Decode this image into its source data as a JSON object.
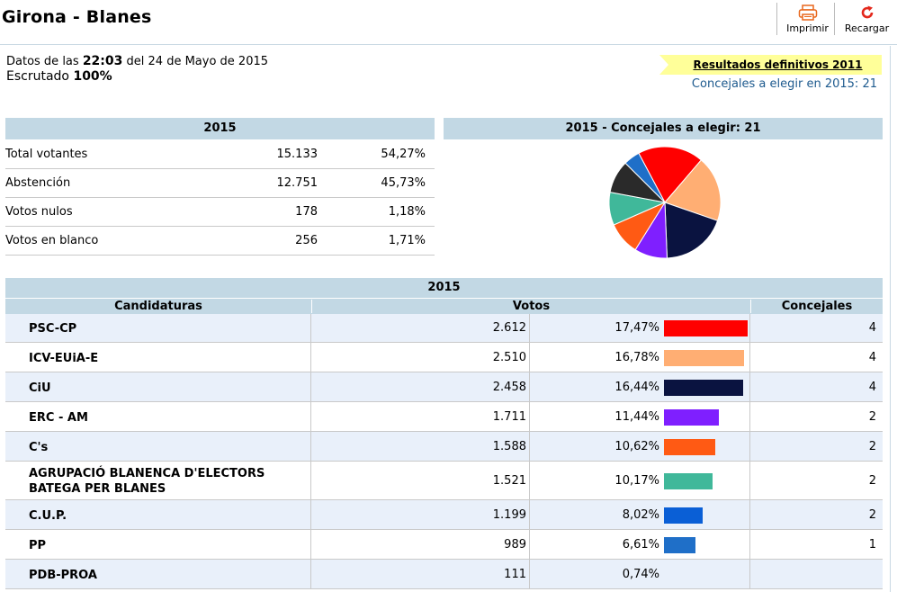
{
  "header": {
    "title": "Girona - Blanes",
    "print_label": "Imprimir",
    "reload_label": "Recargar"
  },
  "info": {
    "datos_prefix": "Datos de las",
    "time": "22:03",
    "date_text": "del 24 de Mayo de 2015",
    "escrutado_label": "Escrutado",
    "escrutado_value": "100%"
  },
  "links": {
    "previous_results": "Resultados definitivos 2011",
    "concejales_note": "Concejales a elegir en 2015: 21"
  },
  "summary": {
    "header": "2015",
    "rows": [
      {
        "label": "Total votantes",
        "value": "15.133",
        "pct": "54,27%"
      },
      {
        "label": "Abstención",
        "value": "12.751",
        "pct": "45,73%"
      },
      {
        "label": "Votos nulos",
        "value": "178",
        "pct": "1,18%"
      },
      {
        "label": "Votos en blanco",
        "value": "256",
        "pct": "1,71%"
      }
    ]
  },
  "pie": {
    "header": "2015 - Concejales a elegir: 21",
    "colors": {
      "white_gap": "#ffffff"
    }
  },
  "results": {
    "header": "2015",
    "columns": [
      "Candidaturas",
      "Votos",
      "Concejales"
    ],
    "rows": [
      {
        "name": "PSC-CP",
        "votes": "2.612",
        "pct": "17,47%",
        "pct_value": 17.47,
        "seats": "4",
        "color": "#ff0000"
      },
      {
        "name": "ICV-EUiA-E",
        "votes": "2.510",
        "pct": "16,78%",
        "pct_value": 16.78,
        "seats": "4",
        "color": "#ffae73"
      },
      {
        "name": "CiU",
        "votes": "2.458",
        "pct": "16,44%",
        "pct_value": 16.44,
        "seats": "4",
        "color": "#0a1340"
      },
      {
        "name": "ERC - AM",
        "votes": "1.711",
        "pct": "11,44%",
        "pct_value": 11.44,
        "seats": "2",
        "color": "#7f1fff"
      },
      {
        "name": "C's",
        "votes": "1.588",
        "pct": "10,62%",
        "pct_value": 10.62,
        "seats": "2",
        "color": "#ff5a14"
      },
      {
        "name": "AGRUPACIÓ BLANENCA D'ELECTORS BATEGA PER BLANES",
        "name_line1": "AGRUPACIÓ BLANENCA D'ELECTORS",
        "name_line2": "BATEGA PER BLANES",
        "votes": "1.521",
        "pct": "10,17%",
        "pct_value": 10.17,
        "seats": "2",
        "color": "#40b89a"
      },
      {
        "name": "C.U.P.",
        "votes": "1.199",
        "pct": "8,02%",
        "pct_value": 8.02,
        "seats": "2",
        "color": "#0a5fd6"
      },
      {
        "name": "PP",
        "votes": "989",
        "pct": "6,61%",
        "pct_value": 6.61,
        "seats": "1",
        "color": "#1f6fc8"
      },
      {
        "name": "PDB-PROA",
        "votes": "111",
        "pct": "0,74%",
        "pct_value": 0.74,
        "seats": "",
        "color": "#cccccc"
      }
    ]
  },
  "chart_data": {
    "type": "pie",
    "title": "2015 - Concejales a elegir: 21",
    "categories": [
      "PSC-CP",
      "ICV-EUiA-E",
      "CiU",
      "ERC - AM",
      "C's",
      "AGRUPACIÓ BLANENCA D'ELECTORS BATEGA PER BLANES",
      "C.U.P.",
      "PP"
    ],
    "values": [
      4,
      4,
      4,
      2,
      2,
      2,
      2,
      1
    ],
    "colors": [
      "#ff0000",
      "#ffae73",
      "#0a1340",
      "#7f1fff",
      "#ff5a14",
      "#40b89a",
      "#2a2a2a",
      "#1f6fc8"
    ]
  }
}
